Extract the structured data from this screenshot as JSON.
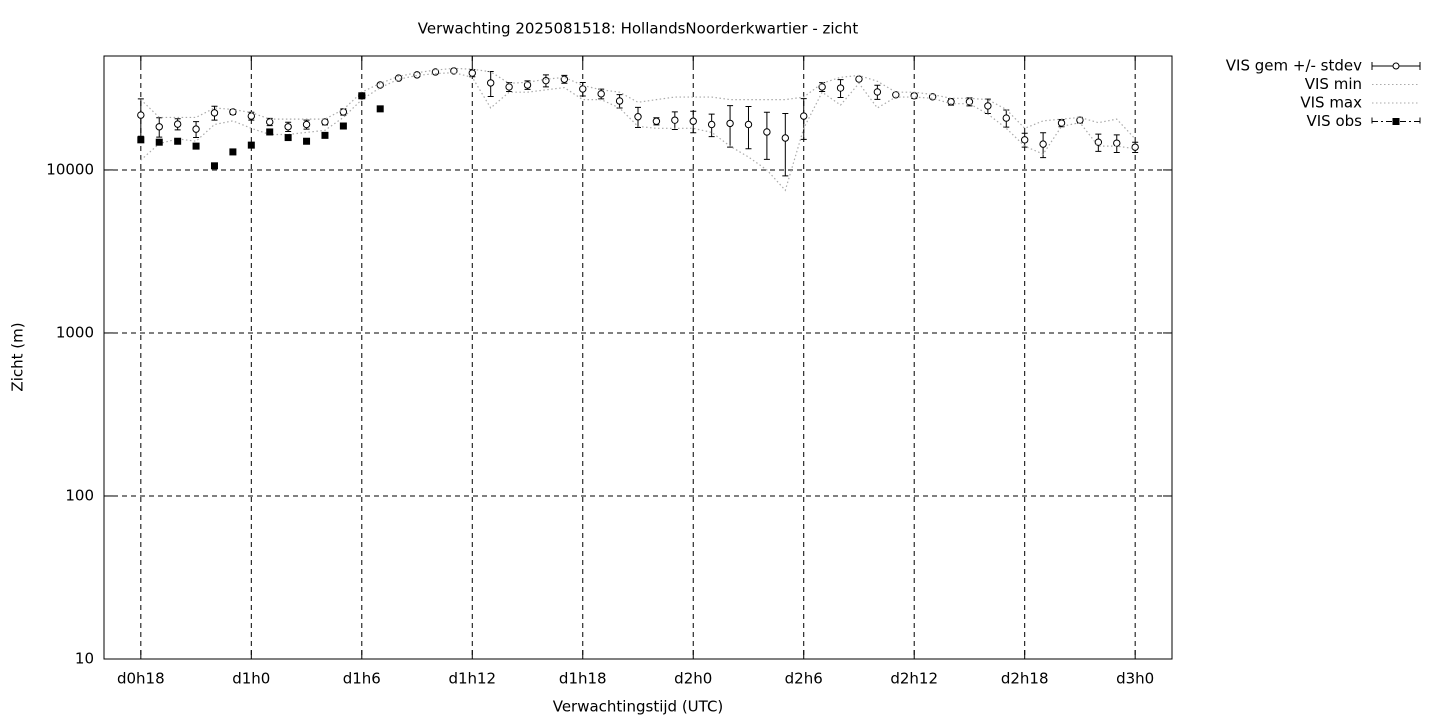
{
  "chart_data": {
    "type": "errorline",
    "title": "Verwachting 2025081518: HollandsNoorderkwartier - zicht",
    "x_label": "Verwachtingstijd (UTC)",
    "y_label": "Zicht (m)",
    "xlim": [
      16,
      74
    ],
    "ylim": [
      10,
      50000
    ],
    "log_y": true,
    "grid": true,
    "legend": "outside-right",
    "xticks": [
      {
        "value": 18,
        "label": "d0h18"
      },
      {
        "value": 24,
        "label": "d1h0"
      },
      {
        "value": 30,
        "label": "d1h6"
      },
      {
        "value": 36,
        "label": "d1h12"
      },
      {
        "value": 42,
        "label": "d1h18"
      },
      {
        "value": 48,
        "label": "d2h0"
      },
      {
        "value": 54,
        "label": "d2h6"
      },
      {
        "value": 60,
        "label": "d2h12"
      },
      {
        "value": 66,
        "label": "d2h18"
      },
      {
        "value": 72,
        "label": "d3h0"
      }
    ],
    "yticks": [
      10,
      100,
      1000,
      10000
    ],
    "x": [
      18,
      19,
      20,
      21,
      22,
      23,
      24,
      25,
      26,
      27,
      28,
      29,
      30,
      31,
      32,
      33,
      34,
      35,
      36,
      37,
      38,
      39,
      40,
      41,
      42,
      43,
      44,
      45,
      46,
      47,
      48,
      49,
      50,
      51,
      52,
      53,
      54,
      55,
      56,
      57,
      58,
      59,
      60,
      61,
      62,
      63,
      64,
      65,
      66,
      67,
      68,
      69,
      70,
      71,
      72
    ],
    "series": [
      {
        "name": "VIS gem +/- stdev",
        "style": "errorbars",
        "color": "#000000",
        "values": [
          21700,
          18400,
          19100,
          17800,
          22400,
          22700,
          21400,
          19700,
          18400,
          19000,
          19700,
          22700,
          28500,
          33200,
          36600,
          38300,
          39900,
          40500,
          39300,
          34200,
          32300,
          33200,
          35300,
          36000,
          31400,
          29300,
          26500,
          21200,
          19900,
          20200,
          19900,
          19000,
          19300,
          19000,
          17100,
          15700,
          21400,
          32300,
          31800,
          36100,
          30100,
          28900,
          28500,
          28100,
          26200,
          26200,
          24700,
          20800,
          15300,
          14400,
          19400,
          20200,
          14800,
          14600,
          13800
        ],
        "errors": [
          5600,
          2500,
          1500,
          2000,
          2200,
          800,
          1200,
          1000,
          1200,
          1200,
          800,
          1000,
          1000,
          800,
          600,
          500,
          500,
          500,
          2000,
          6000,
          2000,
          2000,
          3000,
          2000,
          3000,
          2000,
          2500,
          3000,
          1000,
          2500,
          3000,
          3000,
          5500,
          5500,
          5500,
          6500,
          6000,
          2000,
          4000,
          1000,
          3000,
          500,
          1000,
          500,
          1200,
          1500,
          2500,
          2500,
          1500,
          2500,
          1000,
          800,
          1800,
          1800,
          1000
        ]
      },
      {
        "name": "VIS min",
        "style": "dotted",
        "color": "#aaaaaa",
        "values": [
          11500,
          14500,
          15500,
          15000,
          19000,
          20000,
          18000,
          16500,
          16500,
          17000,
          17500,
          21000,
          27000,
          32000,
          36000,
          38000,
          39000,
          39500,
          37000,
          24000,
          30000,
          30000,
          31000,
          32000,
          27000,
          27000,
          24000,
          18500,
          18000,
          18000,
          18000,
          17000,
          14000,
          12000,
          10000,
          7500,
          18000,
          30000,
          25000,
          34000,
          24000,
          28000,
          28000,
          27500,
          25500,
          25500,
          22000,
          18000,
          14000,
          12500,
          18500,
          19500,
          14000,
          14000,
          13500
        ]
      },
      {
        "name": "VIS max",
        "style": "dotted",
        "color": "#aaaaaa",
        "values": [
          27000,
          21000,
          21000,
          21000,
          24000,
          23500,
          22500,
          20500,
          20500,
          20500,
          20500,
          23500,
          30000,
          34000,
          37500,
          39500,
          41000,
          42000,
          41500,
          40000,
          34000,
          34500,
          36000,
          37000,
          33000,
          31000,
          30000,
          26000,
          27000,
          28000,
          28000,
          28000,
          27000,
          27000,
          27000,
          27000,
          28000,
          34000,
          37000,
          38000,
          35000,
          30000,
          30000,
          29000,
          27500,
          27500,
          27000,
          23500,
          18000,
          20000,
          20500,
          21000,
          19500,
          20500,
          15500
        ]
      },
      {
        "name": "VIS obs",
        "style": "squares",
        "color": "#000000",
        "values": [
          15300,
          14800,
          15000,
          14000,
          10600,
          12900,
          14200,
          17100,
          15800,
          15000,
          16300,
          18600,
          28500,
          23700,
          null,
          null,
          null,
          null,
          null,
          null,
          null,
          null,
          null,
          null,
          null,
          null,
          null,
          null,
          null,
          null,
          null,
          null,
          null,
          null,
          null,
          null,
          null,
          null,
          null,
          null,
          null,
          null,
          null,
          null,
          null,
          null,
          null,
          null,
          null,
          null,
          null,
          null,
          null,
          null,
          null
        ]
      }
    ]
  }
}
